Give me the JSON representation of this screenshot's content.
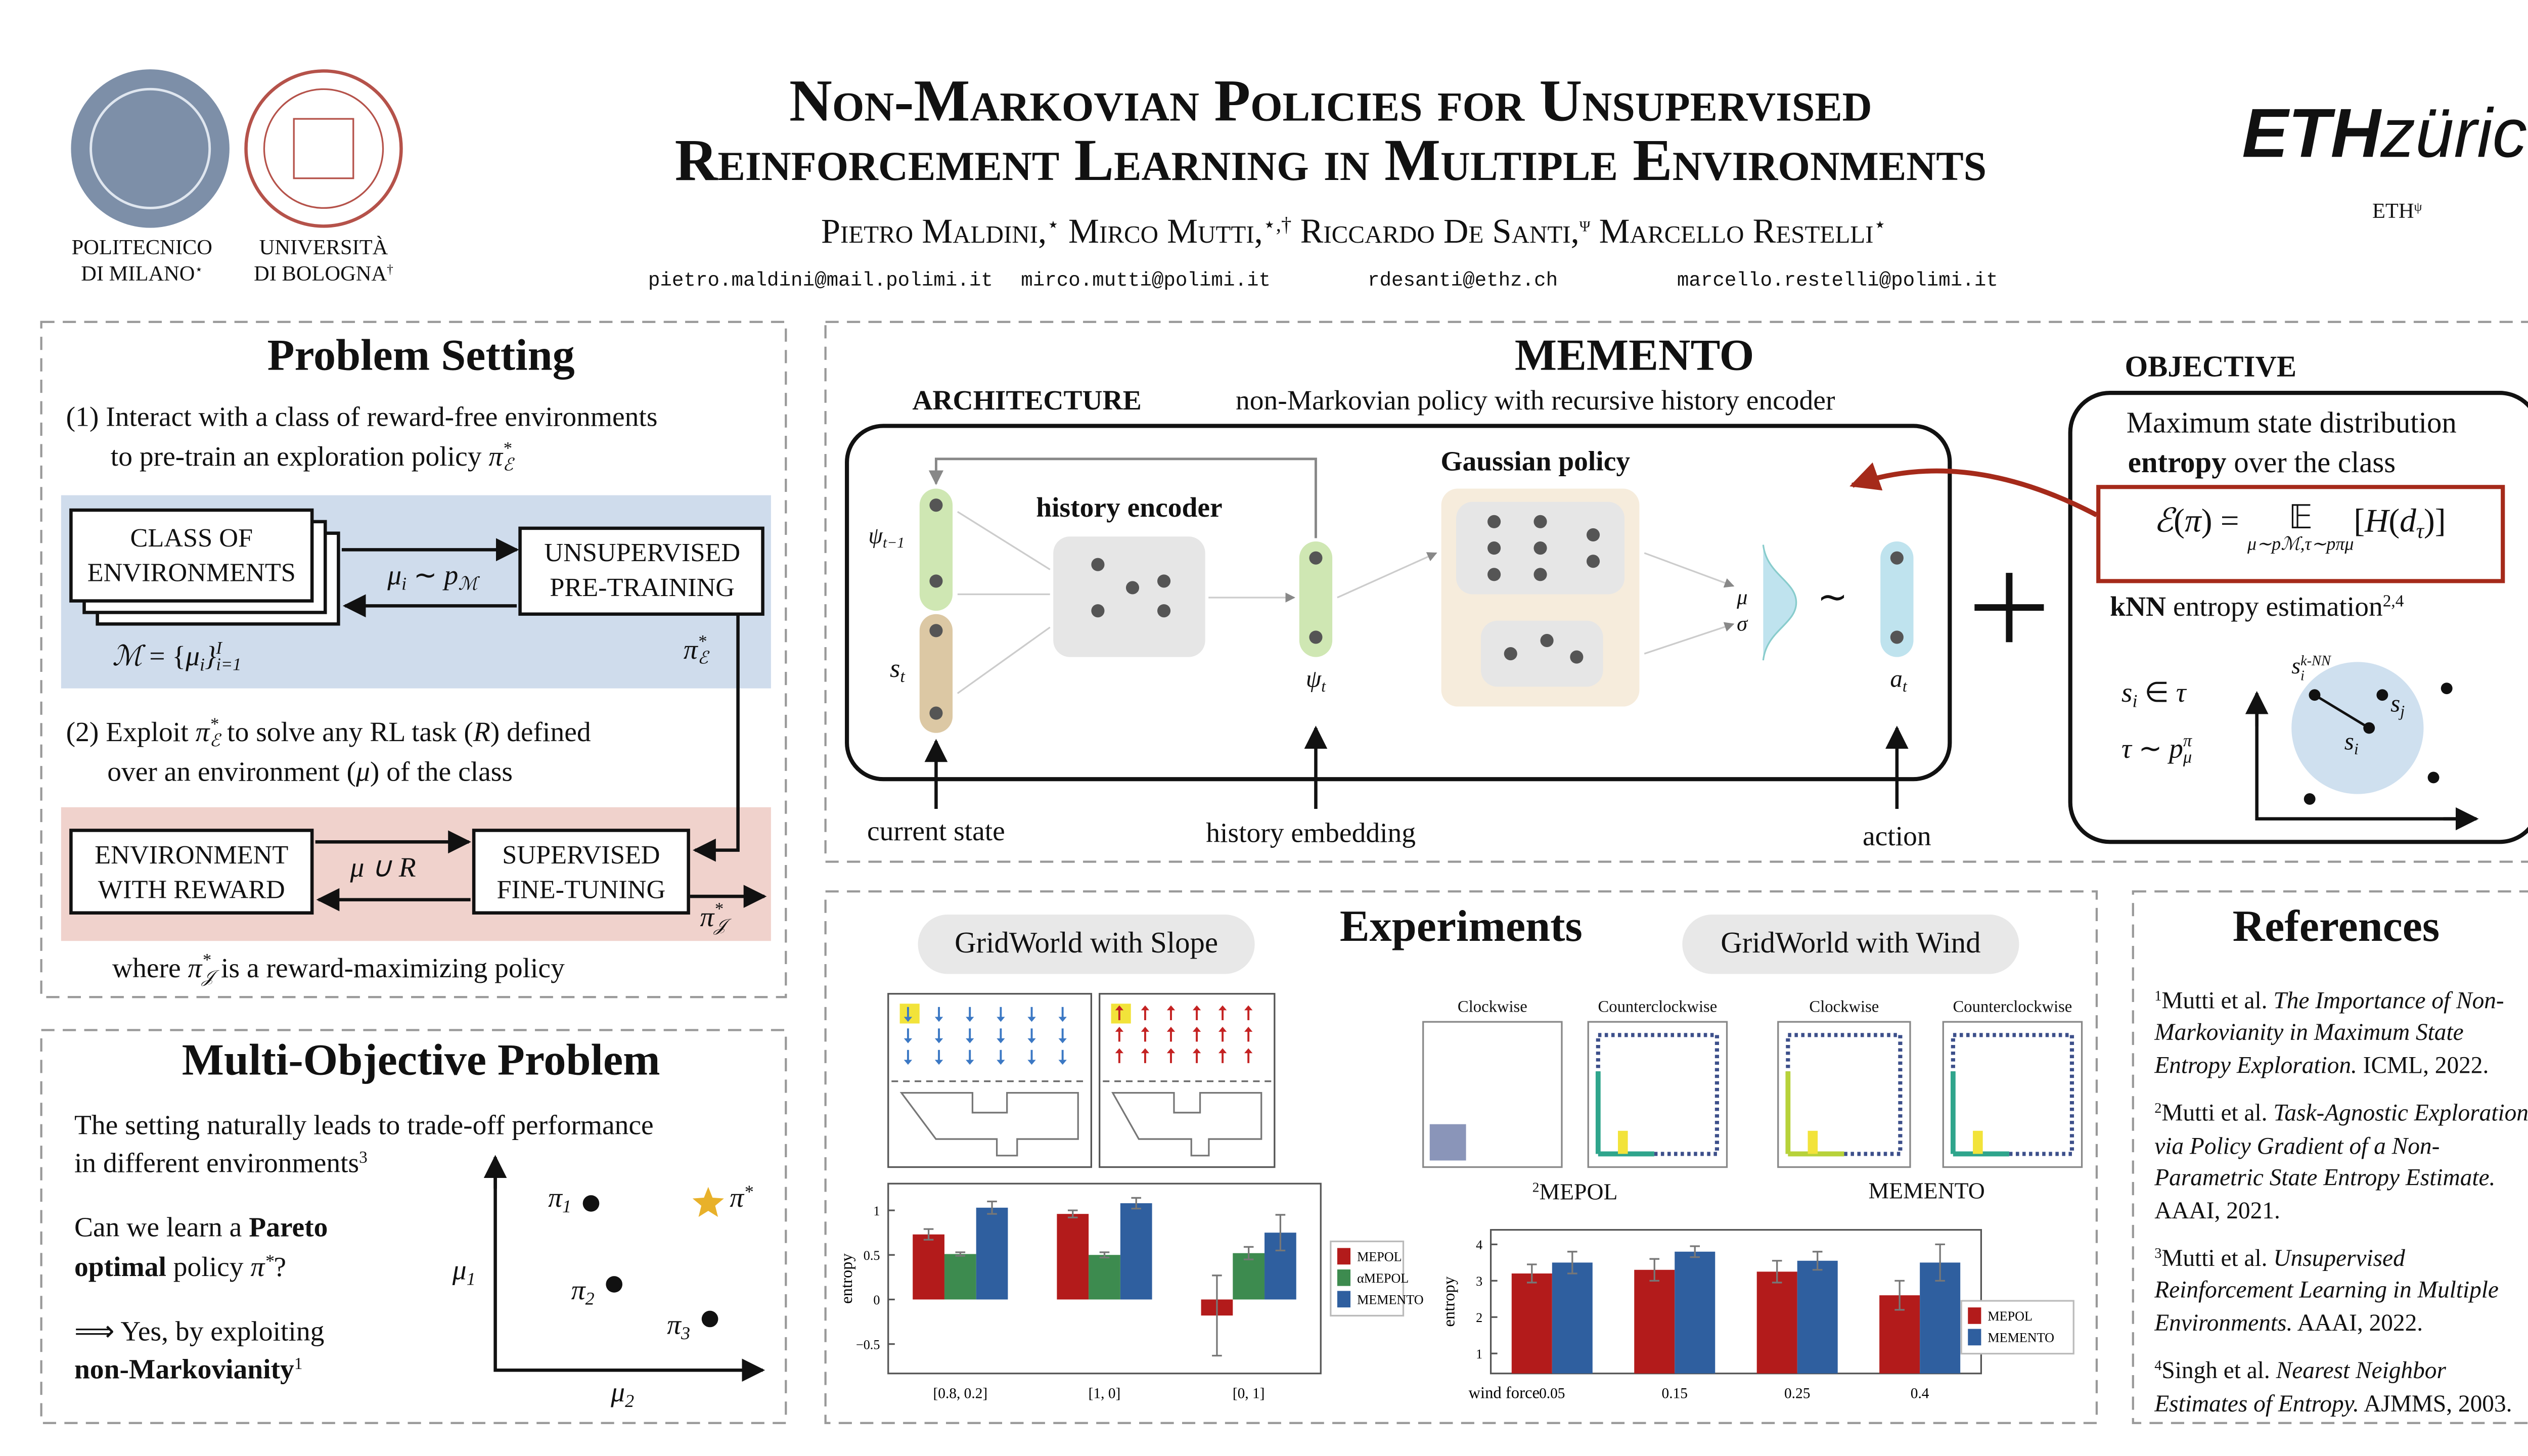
{
  "header": {
    "title": [
      "Non-Markovian Policies for Unsupervised",
      "Reinforcement Learning in Multiple Environments"
    ],
    "authors": [
      {
        "name": "Pietro Maldini,",
        "mark": "⋆",
        "email": "pietro.maldini@mail.polimi.it"
      },
      {
        "name": "Mirco Mutti,",
        "mark": "⋆,†",
        "email": "mirco.mutti@polimi.it"
      },
      {
        "name": "Riccardo De Santi,",
        "mark": "ψ",
        "email": "rdesanti@ethz.ch"
      },
      {
        "name": "Marcello Restelli",
        "mark": "⋆",
        "email": "marcello.restelli@polimi.it"
      }
    ],
    "affiliations": [
      {
        "lines": [
          "POLITECNICO",
          "DI MILANO"
        ],
        "mark": "⋆"
      },
      {
        "lines": [
          "UNIVERSITÀ",
          "DI BOLOGNA"
        ],
        "mark": "†"
      },
      {
        "lines": [
          "ETH"
        ],
        "mark": "ψ"
      }
    ],
    "eth_logo": {
      "bold": "ETH",
      "rest": "zürich"
    }
  },
  "problem": {
    "title": "Problem Setting",
    "step1": [
      [
        "(1) Interact with a class of reward-free environments"
      ],
      [
        "to pre-train an exploration policy ",
        {
          "math": "π",
          "sup": "*",
          "sub": "ℰ"
        }
      ]
    ],
    "class_box": [
      "CLASS OF",
      "ENVIRONMENTS"
    ],
    "pretrain_box": [
      "UNSUPERVISED",
      "PRE-TRAINING"
    ],
    "sample": [
      {
        "math": "μ",
        "sub": "i"
      },
      " ∼ ",
      {
        "math": "p",
        "sub": "ℳ"
      }
    ],
    "env_set": [
      {
        "math": "ℳ"
      },
      " = {",
      {
        "math": "μ",
        "sub": "i"
      },
      {
        "math": "}",
        "sup": "I",
        "sub": "i=1"
      }
    ],
    "pi_e": [
      {
        "math": "π",
        "sup": "*",
        "sub": "ℰ"
      }
    ],
    "step2": [
      [
        "(2) Exploit ",
        {
          "math": "π",
          "sup": "*",
          "sub": "ℰ"
        },
        " to solve any RL task (",
        {
          "math": "R"
        },
        ") defined"
      ],
      [
        "over an environment (",
        {
          "math": "μ"
        },
        ") of the class"
      ]
    ],
    "env_box": [
      "ENVIRONMENT",
      "WITH REWARD"
    ],
    "finetune_box": [
      "SUPERVISED",
      "FINE-TUNING"
    ],
    "task": [
      {
        "math": "μ ∪ R"
      }
    ],
    "pi_j": [
      {
        "math": "π",
        "sup": "*",
        "sub": "𝒥"
      }
    ],
    "where": [
      "where ",
      {
        "math": "π",
        "sup": "*",
        "sub": "𝒥"
      },
      " is a reward-maximizing policy"
    ]
  },
  "multi": {
    "title": "Multi-Objective Problem",
    "lines": [
      [
        "The setting naturally leads to trade-off performance"
      ],
      [
        "in different environments",
        {
          "text": "3",
          "style": "sup"
        }
      ],
      [
        "Can we learn a ",
        {
          "text": "Pareto",
          "style": "bold"
        }
      ],
      [
        {
          "text": "optimal",
          "style": "bold"
        },
        " policy ",
        {
          "math": "π",
          "sup": "*"
        },
        "?"
      ],
      [
        "⟹ Yes, by exploiting"
      ],
      [
        {
          "text": "non-Markovianity",
          "style": "bold"
        },
        {
          "text": "1",
          "style": "sup"
        }
      ]
    ],
    "axis_y": [
      {
        "math": "μ",
        "sub": "1"
      }
    ],
    "axis_x": [
      {
        "math": "μ",
        "sub": "2"
      }
    ],
    "p1": [
      {
        "math": "π",
        "sub": "1"
      }
    ],
    "p2": [
      {
        "math": "π",
        "sub": "2"
      }
    ],
    "p3": [
      {
        "math": "π",
        "sub": "3"
      }
    ],
    "pstar": [
      {
        "math": "π",
        "sup": "*"
      }
    ]
  },
  "memento": {
    "title": "MEMENTO",
    "arch_label": "ARCHITECTURE",
    "arch_desc": "non-Markovian policy with recursive history encoder",
    "history_encoder": "history encoder",
    "gaussian": "Gaussian policy",
    "psi_prev": [
      {
        "math": "ψ",
        "sub": "t−1"
      }
    ],
    "s_t": [
      {
        "math": "s",
        "sub": "t"
      }
    ],
    "psi_t": [
      {
        "math": "ψ",
        "sub": "t"
      }
    ],
    "mu": [
      {
        "math": "μ"
      }
    ],
    "sigma": [
      {
        "math": "σ"
      }
    ],
    "tilde": "∼",
    "a_t": [
      {
        "math": "a",
        "sub": "t"
      }
    ],
    "inputs": [
      "current state",
      "history embedding",
      "action"
    ]
  },
  "objective": {
    "title": "OBJECTIVE",
    "desc": [
      [
        "Maximum state distribution"
      ],
      [
        {
          "text": "entropy",
          "style": "bold"
        },
        " over the class"
      ]
    ],
    "formula": [
      {
        "math": "ℰ"
      },
      "(",
      {
        "math": "π"
      },
      ") = ",
      {
        "under": "𝔼",
        "below": "μ∼pℳ,τ∼pπμ"
      },
      "[",
      {
        "math": "H"
      },
      "(",
      {
        "math": "d",
        "sub": "τ"
      },
      ")]"
    ],
    "knn": [
      {
        "text": "kNN",
        "style": "bold"
      },
      " entropy estimation",
      {
        "text": "2,4",
        "style": "sup"
      }
    ],
    "s_in": [
      {
        "math": "s",
        "sub": "i"
      },
      " ∈ ",
      {
        "math": "τ"
      }
    ],
    "tau": [
      {
        "math": "τ"
      },
      " ∼ ",
      {
        "math": "p",
        "sup": "π",
        "sub": "μ"
      }
    ],
    "s_knn": [
      {
        "math": "s",
        "sup": "k-NN",
        "sub": "i"
      }
    ],
    "s_j": [
      {
        "math": "s",
        "sub": "j"
      }
    ],
    "s_i": [
      {
        "math": "s",
        "sub": "i"
      }
    ]
  },
  "experiments": {
    "title": "Experiments",
    "env_slope": "GridWorld with Slope",
    "env_wind": "GridWorld with Wind",
    "traj_titles": [
      "Clockwise",
      "Counterclockwise",
      "Clockwise",
      "Counterclockwise"
    ],
    "traj_methods": [
      [
        {
          "text": "2",
          "style": "sup"
        },
        "MEPOL"
      ],
      [
        "MEMENTO"
      ]
    ],
    "slope_chart": {
      "type": "bar",
      "ylabel": "entropy",
      "categories": [
        "[0.8, 0.2]",
        "[1, 0]",
        "[0, 1]"
      ],
      "series": [
        {
          "name": "MEPOL",
          "color": "#b31b1b",
          "values": [
            0.73,
            0.96,
            -0.18
          ],
          "errors": [
            0.06,
            0.04,
            0.45
          ]
        },
        {
          "name": "αMEPOL",
          "color": "#3d8b4f",
          "values": [
            0.51,
            0.5,
            0.52
          ],
          "errors": [
            0.02,
            0.03,
            0.07
          ]
        },
        {
          "name": "MEMENTO",
          "color": "#2f5f9f",
          "values": [
            1.03,
            1.08,
            0.75
          ],
          "errors": [
            0.07,
            0.06,
            0.2
          ]
        }
      ],
      "ylim": [
        -0.83,
        1.3
      ],
      "yticks": [
        {
          "value": -0.5,
          "label": "−0.5"
        },
        0,
        0.5,
        1
      ],
      "legend": "right"
    },
    "wind_chart": {
      "type": "bar",
      "ylabel": "entropy",
      "xlabel": "wind force",
      "categories": [
        "0.05",
        "0.15",
        "0.25",
        "0.4"
      ],
      "series": [
        {
          "name": "MEPOL",
          "color": "#b31b1b",
          "values": [
            3.2,
            3.3,
            3.25,
            2.6
          ],
          "errors": [
            0.25,
            0.3,
            0.3,
            0.4
          ]
        },
        {
          "name": "MEMENTO",
          "color": "#2f5f9f",
          "values": [
            3.5,
            3.8,
            3.55,
            3.5
          ],
          "errors": [
            0.3,
            0.15,
            0.25,
            0.5
          ]
        }
      ],
      "ylim": [
        0.45,
        4.4
      ],
      "yticks": [
        1,
        2,
        3,
        4
      ],
      "legend": "right"
    }
  },
  "references": {
    "title": "References",
    "items": [
      {
        "num": "1",
        "authors": "Mutti et al. ",
        "title": "The Importance of Non-Markovianity in Maximum State Entropy Exploration.",
        "venue": " ICML, 2022."
      },
      {
        "num": "2",
        "authors": "Mutti et al. ",
        "title": "Task-Agnostic Exploration via Policy Gradient of a Non-Parametric State Entropy Estimate.",
        "venue": " AAAI, 2021."
      },
      {
        "num": "3",
        "authors": "Mutti et al. ",
        "title": "Unsupervised Reinforcement Learning in Multiple Environments.",
        "venue": " AAAI, 2022."
      },
      {
        "num": "4",
        "authors": "Singh et al. ",
        "title": "Nearest Neighbor Estimates of Entropy.",
        "venue": " AJMMS, 2003."
      }
    ]
  }
}
